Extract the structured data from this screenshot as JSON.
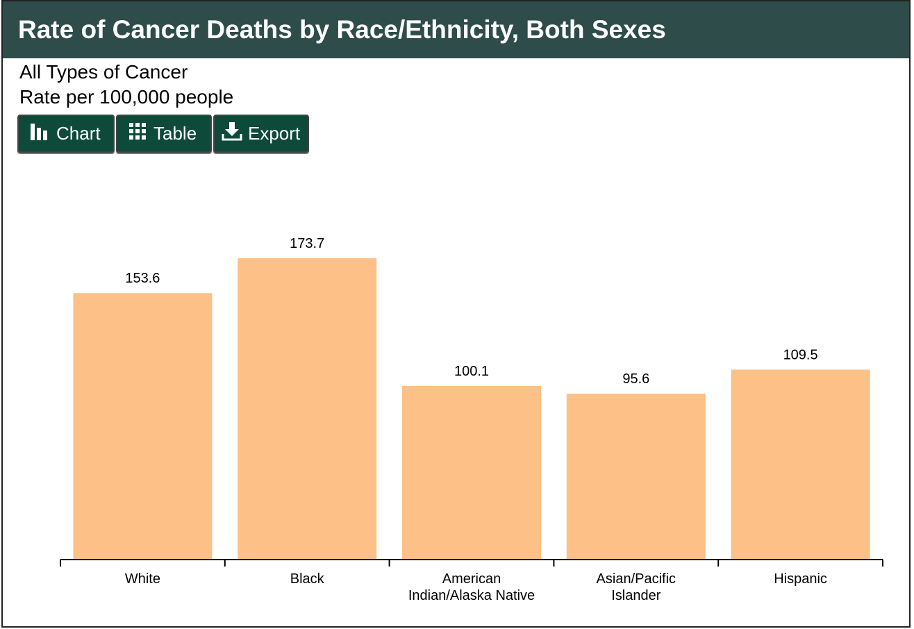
{
  "header": {
    "title": "Rate of Cancer Deaths by Race/Ethnicity, Both Sexes"
  },
  "subtitles": {
    "line1": "All Types of Cancer",
    "line2": "Rate per 100,000 people"
  },
  "toolbar": {
    "chart_label": "Chart",
    "table_label": "Table",
    "export_label": "Export"
  },
  "colors": {
    "header_bg": "#2e4c4a",
    "button_bg": "#0e4a3a",
    "bar": "#fdc086"
  },
  "chart_data": {
    "type": "bar",
    "categories": [
      [
        "White"
      ],
      [
        "Black"
      ],
      [
        "American",
        "Indian/Alaska Native"
      ],
      [
        "Asian/Pacific",
        "Islander"
      ],
      [
        "Hispanic"
      ]
    ],
    "values": [
      153.6,
      173.7,
      100.1,
      95.6,
      109.5
    ],
    "value_labels": [
      "153.6",
      "173.7",
      "100.1",
      "95.6",
      "109.5"
    ],
    "ylim": [
      0,
      180
    ],
    "grid": false,
    "legend": "none"
  }
}
